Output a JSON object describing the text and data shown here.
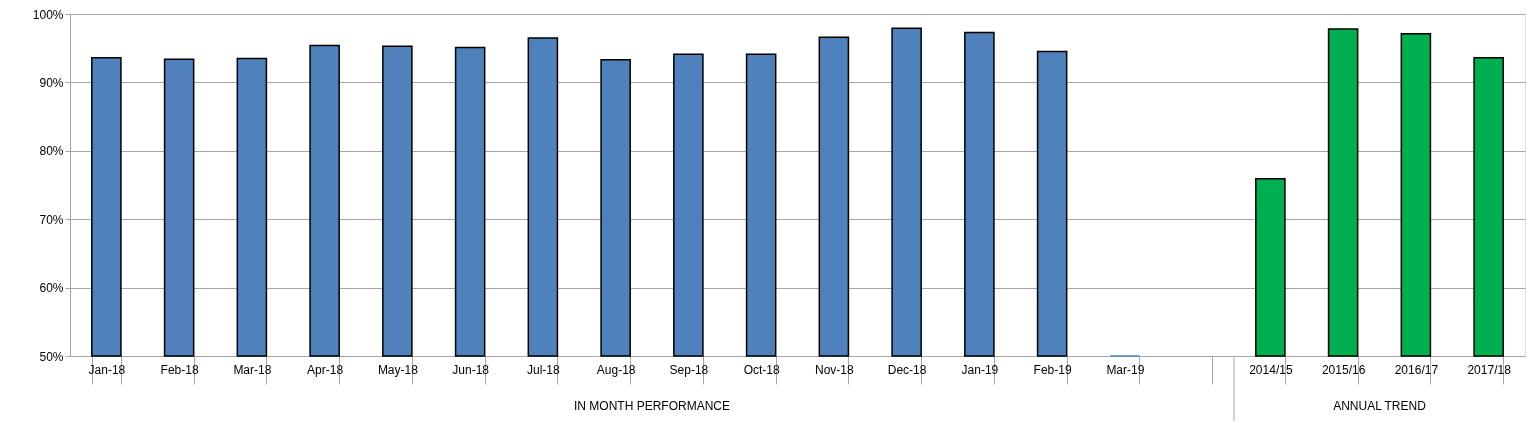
{
  "chart_data": {
    "type": "bar",
    "categories": [
      "Jan-18",
      "Feb-18",
      "Mar-18",
      "Apr-18",
      "May-18",
      "Jun-18",
      "Jul-18",
      "Aug-18",
      "Sep-18",
      "Oct-18",
      "Nov-18",
      "Dec-18",
      "Jan-19",
      "Feb-19",
      "Mar-19",
      null,
      "2014/15",
      "2015/16",
      "2016/17",
      "2017/18"
    ],
    "values": [
      93.6,
      93.4,
      93.5,
      95.4,
      95.3,
      95.1,
      96.5,
      93.3,
      94.1,
      94.1,
      96.6,
      97.9,
      97.3,
      94.5,
      50,
      null,
      75.9,
      97.8,
      97.1,
      93.6
    ],
    "colors": [
      "#4f81bd",
      "#4f81bd",
      "#4f81bd",
      "#4f81bd",
      "#4f81bd",
      "#4f81bd",
      "#4f81bd",
      "#4f81bd",
      "#4f81bd",
      "#4f81bd",
      "#4f81bd",
      "#4f81bd",
      "#4f81bd",
      "#4f81bd",
      "#4f81bd",
      "#4f81bd",
      "#00b050",
      "#00b050",
      "#00b050",
      "#00b050"
    ],
    "ylim": [
      50,
      100
    ],
    "yticks": [
      {
        "value": 50,
        "label": "50%"
      },
      {
        "value": 60,
        "label": "60%"
      },
      {
        "value": 70,
        "label": "70%"
      },
      {
        "value": 80,
        "label": "80%"
      },
      {
        "value": 90,
        "label": "90%"
      },
      {
        "value": 100,
        "label": "100%"
      }
    ],
    "grid": "y",
    "annotations": [
      "IN MONTH PERFORMANCE",
      "ANNUAL TREND"
    ]
  }
}
